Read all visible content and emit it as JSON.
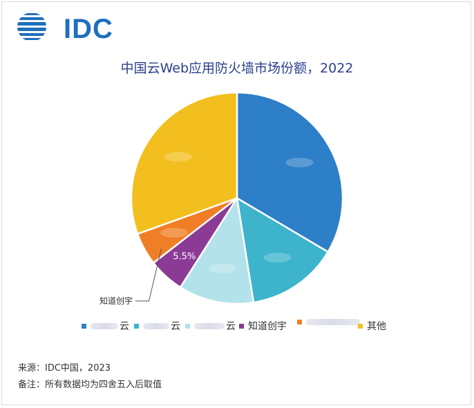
{
  "header": {
    "logo_text": "IDC",
    "title": "中国云Web应用防火墙市场份额，2022"
  },
  "chart_data": {
    "type": "pie",
    "title": "中国云Web应用防火墙市场份额，2022",
    "start_angle_deg": 0,
    "direction": "clockwise",
    "slices": [
      {
        "label": "云",
        "value": 33.5,
        "color": "#2d7fc7",
        "data_label": ""
      },
      {
        "label": "云",
        "value": 14.0,
        "color": "#3db4cc",
        "data_label": ""
      },
      {
        "label": "云",
        "value": 11.5,
        "color": "#b3e2ea",
        "data_label": ""
      },
      {
        "label": "知道创宇",
        "value": 5.5,
        "color": "#8b3a96",
        "data_label": "5.5%"
      },
      {
        "label": "",
        "value": 5.0,
        "color": "#f07e26",
        "data_label": ""
      },
      {
        "label": "其他",
        "value": 30.5,
        "color": "#f2bf1e",
        "data_label": ""
      }
    ],
    "callout": {
      "text": "知道创宇",
      "slice_index": 3
    }
  },
  "legend": {
    "items": [
      {
        "label": "云",
        "color": "#2d7fc7",
        "redacted": true
      },
      {
        "label": "云",
        "color": "#3db4cc",
        "redacted": true
      },
      {
        "label": "云",
        "color": "#b3e2ea",
        "redacted": true
      },
      {
        "label": "知道创宇",
        "color": "#8b3a96",
        "redacted": false
      },
      {
        "label": "",
        "color": "#f07e26",
        "redacted": true
      },
      {
        "label": "其他",
        "color": "#f2bf1e",
        "redacted": false
      }
    ]
  },
  "footer": {
    "source": "来源：IDC中国，2023",
    "note": "备注：所有数据均为四舍五入后取值"
  }
}
